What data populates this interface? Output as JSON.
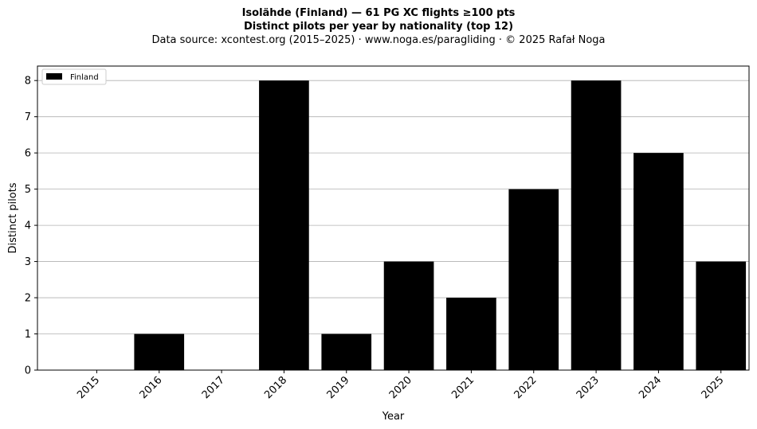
{
  "header": {
    "title_line1": "Isolähde (Finland)  —  61 PG XC flights ≥100 pts",
    "title_line2": "Distinct pilots per year by nationality (top 12)",
    "subtitle": "Data source: xcontest.org (2015–2025)  ·  www.noga.es/paragliding  ·  © 2025 Rafał Noga"
  },
  "chart_data": {
    "type": "bar",
    "categories": [
      "2015",
      "2016",
      "2017",
      "2018",
      "2019",
      "2020",
      "2021",
      "2022",
      "2023",
      "2024",
      "2025"
    ],
    "series": [
      {
        "name": "Finland",
        "color": "#000000",
        "values": [
          0,
          1,
          0,
          8,
          1,
          3,
          2,
          5,
          8,
          6,
          3
        ]
      }
    ],
    "xlabel": "Year",
    "ylabel": "Distinct pilots",
    "ylim": [
      0,
      8.4
    ],
    "yticks": [
      0,
      1,
      2,
      3,
      4,
      5,
      6,
      7,
      8
    ],
    "grid": "horizontal",
    "legend_position": "top-left"
  }
}
